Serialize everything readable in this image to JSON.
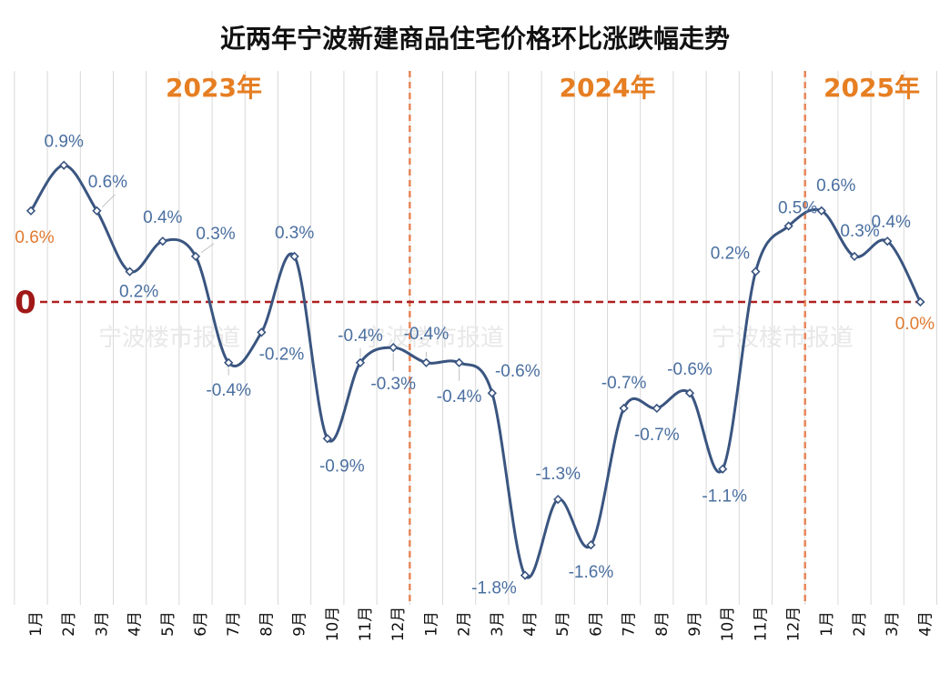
{
  "chart_data": {
    "type": "line",
    "title": "近两年宁波新建商品住宅价格环比涨跌幅走势",
    "x": [
      "1月",
      "2月",
      "3月",
      "4月",
      "5月",
      "6月",
      "7月",
      "8月",
      "9月",
      "10月",
      "11月",
      "12月",
      "1月",
      "2月",
      "3月",
      "4月",
      "5月",
      "6月",
      "7月",
      "8月",
      "9月",
      "10月",
      "11月",
      "12月",
      "1月",
      "2月",
      "3月",
      "4月"
    ],
    "years": [
      {
        "label": "2023年",
        "start_index": 0
      },
      {
        "label": "2024年",
        "start_index": 12
      },
      {
        "label": "2025年",
        "start_index": 24
      }
    ],
    "series": [
      {
        "name": "",
        "values": [
          0.6,
          0.9,
          0.6,
          0.2,
          0.4,
          0.3,
          -0.4,
          -0.2,
          0.3,
          -0.9,
          -0.4,
          -0.3,
          -0.4,
          -0.4,
          -0.6,
          -1.8,
          -1.3,
          -1.6,
          -0.7,
          -0.7,
          -0.6,
          -1.1,
          0.2,
          0.5,
          0.6,
          0.3,
          0.4,
          0.0
        ],
        "labels": [
          "0.6%",
          "0.9%",
          "0.6%",
          "0.2%",
          "0.4%",
          "0.3%",
          "-0.4%",
          "-0.2%",
          "0.3%",
          "-0.9%",
          "-0.4%",
          "-0.3%",
          "-0.4%",
          "-0.4%",
          "-0.6%",
          "-1.8%",
          "-1.3%",
          "-1.6%",
          "-0.7%",
          "-0.7%",
          "-0.6%",
          "-1.1%",
          "0.2%",
          "0.5%",
          "0.6%",
          "0.3%",
          "0.4%",
          "0.0%"
        ]
      }
    ],
    "zero_label": "0",
    "watermark": "宁波楼市报道",
    "ylim": [
      -2.0,
      1.2
    ],
    "grid": "vertical",
    "colors": {
      "line": "#3a5580",
      "label": "#4a6fa0",
      "highlight_label": "#e07a30",
      "year_label": "#e67e22",
      "year_divider": "#e8875a",
      "zero_line": "#b02020",
      "zero_text": "#a01818",
      "grid": "#d9d9d9"
    }
  }
}
